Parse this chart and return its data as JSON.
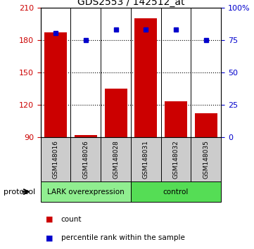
{
  "title": "GDS2553 / 142512_at",
  "categories": [
    "GSM148016",
    "GSM148026",
    "GSM148028",
    "GSM148031",
    "GSM148032",
    "GSM148035"
  ],
  "bar_values": [
    187,
    92,
    135,
    200,
    123,
    112
  ],
  "percentile_values": [
    80,
    75,
    83,
    83,
    83,
    75
  ],
  "bar_color": "#cc0000",
  "dot_color": "#0000cc",
  "ylim_left": [
    90,
    210
  ],
  "ylim_right": [
    0,
    100
  ],
  "yticks_left": [
    90,
    120,
    150,
    180,
    210
  ],
  "yticks_right": [
    0,
    25,
    50,
    75,
    100
  ],
  "ytick_labels_right": [
    "0",
    "25",
    "50",
    "75",
    "100%"
  ],
  "grid_values": [
    120,
    150,
    180
  ],
  "group1_label": "LARK overexpression",
  "group2_label": "control",
  "group1_color": "#90ee90",
  "group2_color": "#55dd55",
  "group1_count": 3,
  "group2_count": 3,
  "protocol_label": "protocol",
  "legend_count_label": "count",
  "legend_pct_label": "percentile rank within the sample",
  "bar_width": 0.75,
  "background_gray": "#cccccc",
  "axis_label_color_left": "#cc0000",
  "axis_label_color_right": "#0000cc",
  "figsize": [
    3.61,
    3.54
  ],
  "dpi": 100
}
